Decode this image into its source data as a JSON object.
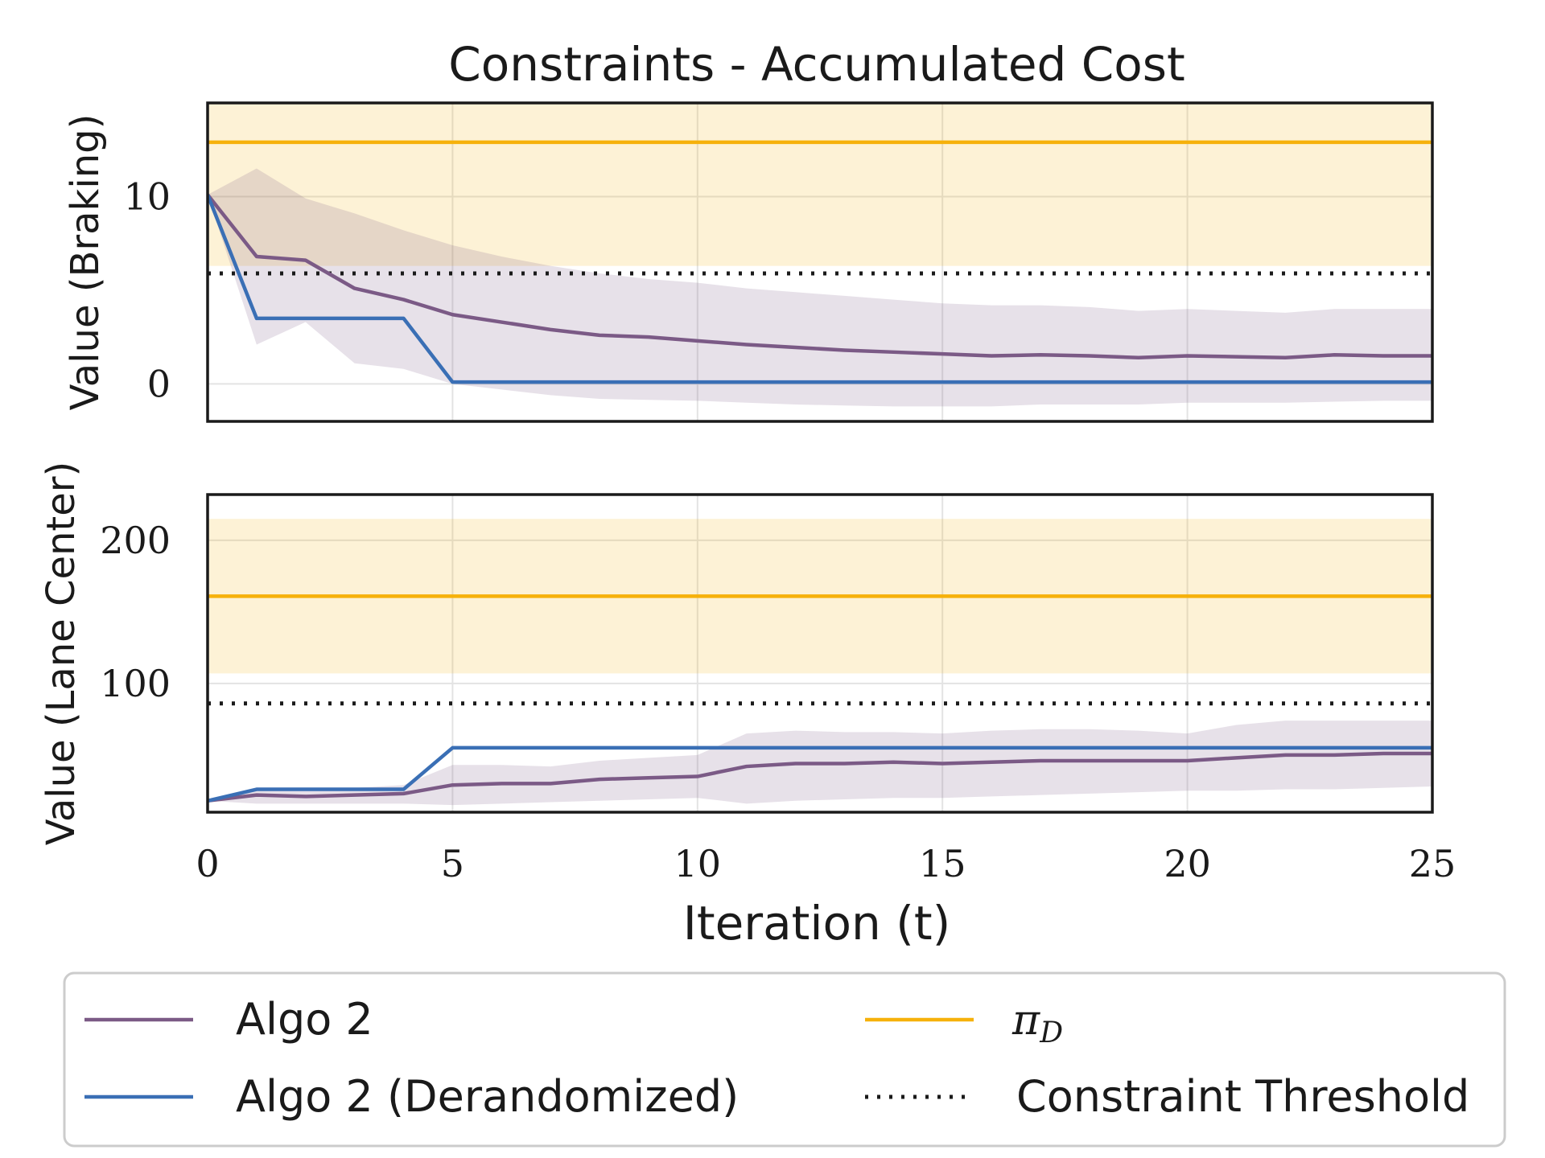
{
  "chart_data": {
    "type": "line",
    "title": "Constraints - Accumulated Cost",
    "xlabel": "Iteration (t)",
    "xlim": [
      0,
      25
    ],
    "x_ticks": [
      "0",
      "5",
      "10",
      "15",
      "20",
      "25"
    ],
    "panels": [
      {
        "ylabel": "Value (Braking)",
        "ylim": [
          -2,
          15
        ],
        "y_ticks": [
          {
            "value": 0,
            "label": "0"
          },
          {
            "value": 10,
            "label": "10"
          }
        ],
        "pi_d": {
          "value": 12.9,
          "band": [
            6.3,
            15
          ]
        },
        "threshold": 5.9,
        "algo2": {
          "x": [
            0,
            1,
            2,
            3,
            4,
            5,
            6,
            7,
            8,
            9,
            10,
            11,
            12,
            13,
            14,
            15,
            16,
            17,
            18,
            19,
            20,
            21,
            22,
            23,
            24,
            25
          ],
          "y": [
            10.1,
            6.8,
            6.6,
            5.1,
            4.5,
            3.7,
            3.3,
            2.9,
            2.6,
            2.5,
            2.3,
            2.1,
            1.95,
            1.8,
            1.7,
            1.6,
            1.5,
            1.55,
            1.5,
            1.4,
            1.5,
            1.45,
            1.4,
            1.55,
            1.5,
            1.5
          ],
          "lower": [
            10.1,
            2.1,
            3.3,
            1.1,
            0.8,
            0.0,
            -0.3,
            -0.6,
            -0.8,
            -0.85,
            -0.9,
            -1.0,
            -1.1,
            -1.15,
            -1.2,
            -1.2,
            -1.2,
            -1.1,
            -1.1,
            -1.1,
            -1.0,
            -1.0,
            -1.0,
            -0.95,
            -0.9,
            -0.9
          ],
          "upper": [
            10.1,
            11.5,
            9.9,
            9.1,
            8.2,
            7.4,
            6.8,
            6.3,
            5.9,
            5.6,
            5.4,
            5.1,
            4.9,
            4.7,
            4.5,
            4.3,
            4.2,
            4.2,
            4.1,
            3.9,
            4.0,
            3.9,
            3.8,
            4.0,
            4.0,
            4.0
          ]
        },
        "algo2_derand": {
          "x": [
            0,
            1,
            4,
            5,
            25
          ],
          "y": [
            10.1,
            3.5,
            3.5,
            0.1,
            0.1
          ]
        }
      },
      {
        "ylabel": "Value (Lane Center)",
        "ylim": [
          10,
          232
        ],
        "y_ticks": [
          {
            "value": 100,
            "label": "100"
          },
          {
            "value": 200,
            "label": "200"
          }
        ],
        "pi_d": {
          "value": 161,
          "band": [
            107,
            215
          ]
        },
        "threshold": 86,
        "algo2": {
          "x": [
            0,
            1,
            2,
            3,
            4,
            5,
            6,
            7,
            8,
            9,
            10,
            11,
            12,
            13,
            14,
            15,
            16,
            17,
            18,
            19,
            20,
            21,
            22,
            23,
            24,
            25
          ],
          "y": [
            18,
            22,
            21,
            22,
            23,
            29,
            30,
            30,
            33,
            34,
            35,
            42,
            44,
            44,
            45,
            44,
            45,
            46,
            46,
            46,
            46,
            48,
            50,
            50,
            51,
            51
          ],
          "lower": [
            18,
            16,
            16,
            16,
            16,
            15,
            16,
            17,
            18,
            19,
            20,
            16,
            18,
            19,
            20,
            20,
            21,
            22,
            23,
            24,
            25,
            25,
            26,
            26,
            27,
            28
          ],
          "upper": [
            18,
            26,
            25,
            27,
            29,
            43,
            43,
            42,
            46,
            48,
            50,
            65,
            67,
            66,
            66,
            65,
            67,
            68,
            68,
            67,
            65,
            71,
            74,
            74,
            74,
            74
          ]
        },
        "algo2_derand": {
          "x": [
            0,
            1,
            4,
            5,
            25
          ],
          "y": [
            18,
            26,
            26,
            55,
            55
          ]
        }
      }
    ],
    "legend": {
      "placement": "bottom",
      "entries": [
        {
          "label": "Algo 2",
          "color": "#7b5a86",
          "style": "solid"
        },
        {
          "label": "π_D",
          "color": "#f6b10b",
          "style": "solid"
        },
        {
          "label": "Algo 2 (Derandomized)",
          "color": "#3a6fb5",
          "style": "solid"
        },
        {
          "label": "Constraint Threshold",
          "color": "#1a1a1a",
          "style": "dotted"
        }
      ]
    },
    "colors": {
      "algo2": "#7b5a86",
      "algo2_band": "#e8e0e9",
      "derand": "#3a6fb5",
      "pi_d": "#f6b10b",
      "pi_d_band": "#fdf0d9",
      "threshold": "#1a1a1a",
      "grid": "#e3e3e3",
      "axis": "#1a1a1a",
      "text": "#1a1a1a"
    }
  }
}
